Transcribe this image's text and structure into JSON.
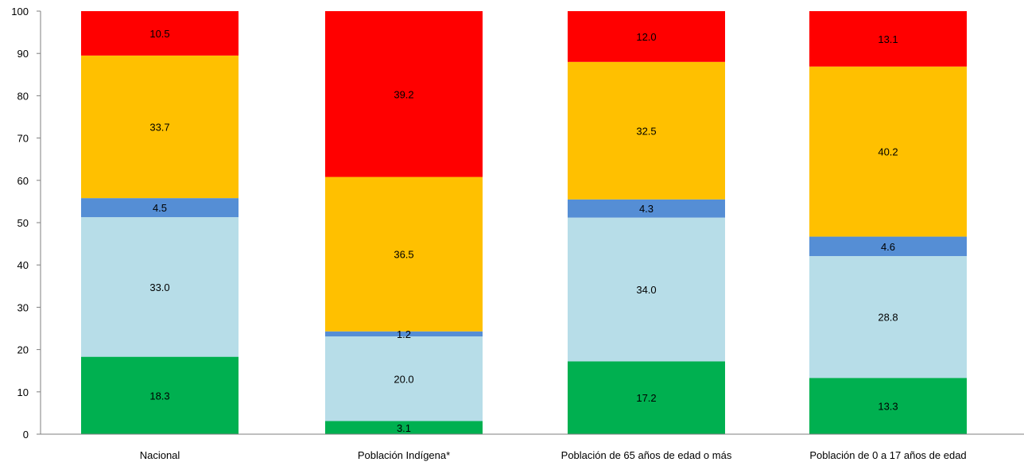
{
  "chart_data": {
    "type": "bar",
    "stacked": true,
    "categories": [
      "Nacional",
      "Población Indígena*",
      "Población de 65 años de edad o más",
      "Población de 0 a 17 años de edad"
    ],
    "series": [
      {
        "color": "#00b050",
        "values": [
          18.3,
          3.1,
          17.2,
          13.3
        ]
      },
      {
        "color": "#b7dde8",
        "values": [
          33.0,
          20.0,
          34.0,
          28.8
        ]
      },
      {
        "color": "#558ed5",
        "values": [
          4.5,
          1.2,
          4.3,
          4.6
        ]
      },
      {
        "color": "#ffc000",
        "values": [
          33.7,
          36.5,
          32.5,
          40.2
        ]
      },
      {
        "color": "#ff0000",
        "values": [
          10.5,
          39.2,
          12.0,
          13.1
        ]
      }
    ],
    "data_labels": [
      [
        "18.3",
        "3.1",
        "17.2",
        "13.3"
      ],
      [
        "33.0",
        "20.0",
        "34.0",
        "28.8"
      ],
      [
        "4.5",
        "1.2",
        "4.3",
        "4.6"
      ],
      [
        "33.7",
        "36.5",
        "32.5",
        "40.2"
      ],
      [
        "10.5",
        "39.2",
        "12.0",
        "13.1"
      ]
    ],
    "ylim": [
      0,
      100
    ],
    "yticks": [
      "0",
      "10",
      "20",
      "30",
      "40",
      "50",
      "60",
      "70",
      "80",
      "90",
      "100"
    ],
    "grid": false,
    "title": "",
    "xlabel": "",
    "ylabel": ""
  }
}
